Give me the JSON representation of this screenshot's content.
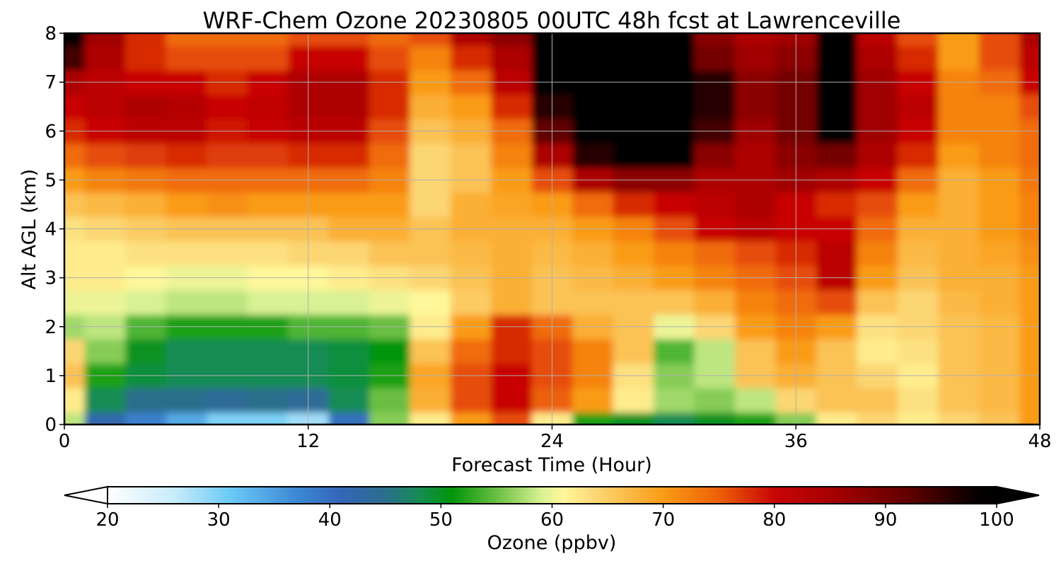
{
  "chart_data": {
    "type": "heatmap",
    "title": "WRF-Chem Ozone  20230805 00UTC 48h fcst at Lawrenceville",
    "xlabel": "Forecast Time (Hour)",
    "ylabel": "Alt AGL (km)",
    "xlim": [
      0,
      48
    ],
    "ylim": [
      0,
      8
    ],
    "x_ticks": [
      0,
      12,
      24,
      36,
      48
    ],
    "y_ticks": [
      0,
      1,
      2,
      3,
      4,
      5,
      6,
      7,
      8
    ],
    "grid": true,
    "x_hours": [
      0,
      2,
      4,
      6,
      8,
      10,
      12,
      14,
      16,
      18,
      20,
      22,
      24,
      26,
      28,
      30,
      32,
      34,
      36,
      38,
      40,
      42,
      44,
      46,
      48
    ],
    "z_altitudes_km": [
      0,
      0.5,
      1,
      1.5,
      2,
      2.5,
      3,
      3.5,
      4,
      4.5,
      5,
      5.5,
      6,
      6.5,
      7,
      7.5,
      8
    ],
    "z_values_ppbv": [
      [
        58,
        42,
        38,
        34,
        30,
        30,
        28,
        40,
        56,
        62,
        70,
        76,
        62,
        52,
        50,
        48,
        50,
        52,
        56,
        62,
        64,
        62,
        64,
        66,
        70
      ],
      [
        62,
        48,
        45,
        45,
        44,
        45,
        44,
        48,
        55,
        68,
        76,
        80,
        75,
        70,
        62,
        57,
        56,
        58,
        64,
        66,
        66,
        63,
        66,
        67,
        70
      ],
      [
        66,
        52,
        49,
        48,
        48,
        48,
        48,
        49,
        52,
        69,
        76,
        80,
        76,
        72,
        63,
        56,
        58,
        66,
        68,
        66,
        64,
        62,
        66,
        67,
        70
      ],
      [
        64,
        56,
        50,
        48,
        48,
        48,
        48,
        49,
        51,
        66,
        74,
        78,
        76,
        72,
        66,
        54,
        58,
        66,
        70,
        66,
        62,
        63,
        66,
        67,
        70
      ],
      [
        57,
        58,
        54,
        52,
        52,
        52,
        54,
        54,
        55,
        62,
        70,
        78,
        74,
        68,
        66,
        60,
        64,
        70,
        72,
        70,
        63,
        64,
        66,
        67,
        70
      ],
      [
        60,
        60,
        59,
        58,
        58,
        59,
        59,
        59,
        60,
        61,
        65,
        68,
        66,
        66,
        66,
        66,
        68,
        72,
        74,
        76,
        66,
        64,
        67,
        68,
        70
      ],
      [
        62,
        62,
        61,
        60,
        60,
        61,
        61,
        62,
        63,
        64,
        66,
        68,
        66,
        67,
        68,
        70,
        72,
        74,
        76,
        82,
        70,
        66,
        68,
        68,
        70
      ],
      [
        62,
        62,
        63,
        63,
        63,
        63,
        64,
        64,
        66,
        66,
        67,
        68,
        67,
        68,
        70,
        72,
        74,
        76,
        78,
        82,
        72,
        67,
        68,
        69,
        71
      ],
      [
        63,
        64,
        65,
        66,
        66,
        66,
        66,
        68,
        68,
        66,
        68,
        68,
        68,
        70,
        72,
        76,
        80,
        82,
        80,
        80,
        74,
        68,
        68,
        70,
        72
      ],
      [
        66,
        67,
        68,
        70,
        71,
        70,
        70,
        70,
        70,
        64,
        68,
        69,
        70,
        74,
        78,
        80,
        82,
        84,
        80,
        78,
        76,
        70,
        68,
        70,
        72
      ],
      [
        70,
        72,
        73,
        74,
        74,
        74,
        74,
        74,
        72,
        64,
        66,
        70,
        76,
        84,
        88,
        88,
        84,
        84,
        86,
        84,
        80,
        74,
        68,
        70,
        73
      ],
      [
        74,
        76,
        77,
        78,
        77,
        77,
        78,
        78,
        74,
        64,
        66,
        72,
        84,
        96,
        100,
        100,
        88,
        84,
        88,
        90,
        84,
        78,
        70,
        72,
        74
      ],
      [
        78,
        80,
        82,
        82,
        79,
        80,
        82,
        82,
        76,
        66,
        68,
        74,
        92,
        100,
        100,
        100,
        94,
        86,
        90,
        100,
        86,
        80,
        72,
        72,
        74
      ],
      [
        80,
        82,
        84,
        83,
        80,
        81,
        84,
        84,
        78,
        68,
        70,
        78,
        96,
        100,
        100,
        100,
        96,
        88,
        90,
        100,
        86,
        82,
        72,
        72,
        76
      ],
      [
        84,
        82,
        80,
        80,
        78,
        80,
        84,
        84,
        78,
        70,
        74,
        82,
        100,
        100,
        100,
        100,
        96,
        88,
        90,
        100,
        86,
        80,
        72,
        74,
        80
      ],
      [
        94,
        84,
        78,
        76,
        76,
        76,
        80,
        80,
        76,
        72,
        78,
        84,
        100,
        100,
        100,
        100,
        90,
        86,
        88,
        100,
        84,
        78,
        70,
        76,
        82
      ],
      [
        100,
        86,
        78,
        74,
        74,
        74,
        76,
        76,
        74,
        76,
        84,
        88,
        100,
        100,
        100,
        100,
        88,
        84,
        86,
        100,
        82,
        76,
        70,
        76,
        84
      ]
    ],
    "colorbar": {
      "label": "Ozone  (ppbv)",
      "min": 20,
      "max": 100,
      "extend": "both",
      "ticks": [
        20,
        30,
        40,
        50,
        60,
        70,
        80,
        90,
        100
      ],
      "stops": [
        {
          "v": 20,
          "c": "#ffffff"
        },
        {
          "v": 26,
          "c": "#c8ecfb"
        },
        {
          "v": 31,
          "c": "#6ccaf5"
        },
        {
          "v": 37,
          "c": "#3d88d4"
        },
        {
          "v": 41,
          "c": "#3466b8"
        },
        {
          "v": 45,
          "c": "#2c6e8c"
        },
        {
          "v": 48,
          "c": "#158c55"
        },
        {
          "v": 51,
          "c": "#02950a"
        },
        {
          "v": 55,
          "c": "#6abf42"
        },
        {
          "v": 59,
          "c": "#d8f194"
        },
        {
          "v": 61,
          "c": "#fff79a"
        },
        {
          "v": 64,
          "c": "#fcd673"
        },
        {
          "v": 70,
          "c": "#fa9b16"
        },
        {
          "v": 75,
          "c": "#ed6008"
        },
        {
          "v": 80,
          "c": "#c80505"
        },
        {
          "v": 86,
          "c": "#a00000"
        },
        {
          "v": 92,
          "c": "#600000"
        },
        {
          "v": 98,
          "c": "#090000"
        },
        {
          "v": 100,
          "c": "#000000"
        }
      ]
    }
  }
}
